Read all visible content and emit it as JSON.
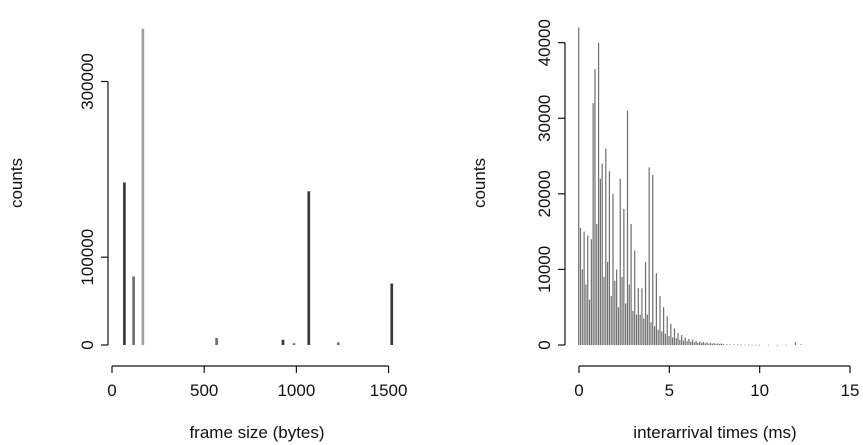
{
  "colors": {
    "axis": "#111111",
    "bar_dark": "#3a3a3a",
    "bar_mid": "#707070",
    "bar_light": "#a0a0a0",
    "background": "#ffffff"
  },
  "chart_data": [
    {
      "type": "bar",
      "title": "",
      "xlabel": "frame size (bytes)",
      "ylabel": "counts",
      "xlim": [
        0,
        1600
      ],
      "ylim": [
        0,
        370000
      ],
      "xticks": [
        "0",
        "500",
        "1000",
        "1500"
      ],
      "yticks": [
        "0",
        "100000",
        "300000"
      ],
      "bin_width": 20,
      "x": [
        70,
        120,
        170,
        570,
        930,
        990,
        1070,
        1230,
        1520
      ],
      "values": [
        185000,
        78000,
        360000,
        8000,
        6000,
        2000,
        175000,
        3000,
        70000
      ],
      "shade": [
        "dark",
        "mid",
        "light",
        "mid",
        "dark",
        "mid",
        "dark",
        "mid",
        "dark"
      ]
    },
    {
      "type": "bar",
      "title": "",
      "xlabel": "interarrival times (ms)",
      "ylabel": "counts",
      "xlim": [
        0,
        15
      ],
      "ylim": [
        0,
        43000
      ],
      "xticks": [
        "0",
        "5",
        "10",
        "15"
      ],
      "yticks": [
        "0",
        "10000",
        "20000",
        "30000",
        "40000"
      ],
      "bin_width": 0.1,
      "x": [
        0.0,
        0.1,
        0.2,
        0.3,
        0.4,
        0.5,
        0.6,
        0.7,
        0.8,
        0.9,
        1.0,
        1.1,
        1.2,
        1.3,
        1.4,
        1.5,
        1.6,
        1.7,
        1.8,
        1.9,
        2.0,
        2.1,
        2.2,
        2.3,
        2.4,
        2.5,
        2.6,
        2.7,
        2.8,
        2.9,
        3.0,
        3.1,
        3.2,
        3.3,
        3.4,
        3.5,
        3.6,
        3.7,
        3.8,
        3.9,
        4.0,
        4.1,
        4.2,
        4.3,
        4.4,
        4.5,
        4.6,
        4.7,
        4.8,
        4.9,
        5.0,
        5.1,
        5.2,
        5.3,
        5.4,
        5.5,
        5.6,
        5.7,
        5.8,
        5.9,
        6.0,
        6.1,
        6.2,
        6.3,
        6.4,
        6.5,
        6.6,
        6.7,
        6.8,
        6.9,
        7.0,
        7.1,
        7.2,
        7.3,
        7.4,
        7.5,
        7.6,
        7.7,
        7.8,
        7.9,
        8.0,
        8.2,
        8.4,
        8.6,
        8.8,
        9.0,
        9.2,
        9.4,
        9.6,
        9.8,
        10.0,
        10.5,
        11.0,
        11.5,
        12.0,
        12.3
      ],
      "values": [
        42000,
        15500,
        10000,
        15000,
        8000,
        14500,
        6000,
        14000,
        32000,
        36500,
        16000,
        40000,
        22000,
        24000,
        9000,
        26000,
        11000,
        23000,
        6500,
        20000,
        8500,
        10000,
        5000,
        22000,
        9000,
        18000,
        5500,
        31000,
        8000,
        16000,
        4500,
        12500,
        4000,
        7500,
        4000,
        7500,
        3500,
        11000,
        4000,
        23500,
        3000,
        22500,
        2500,
        9500,
        2000,
        6500,
        1800,
        5000,
        1500,
        3800,
        1200,
        2800,
        1000,
        2200,
        900,
        1600,
        700,
        1300,
        600,
        1000,
        500,
        800,
        400,
        700,
        350,
        550,
        300,
        450,
        250,
        400,
        220,
        350,
        200,
        300,
        180,
        250,
        160,
        220,
        140,
        200,
        120,
        100,
        90,
        80,
        70,
        60,
        50,
        40,
        35,
        30,
        25,
        20,
        15,
        10,
        400,
        100
      ]
    }
  ]
}
